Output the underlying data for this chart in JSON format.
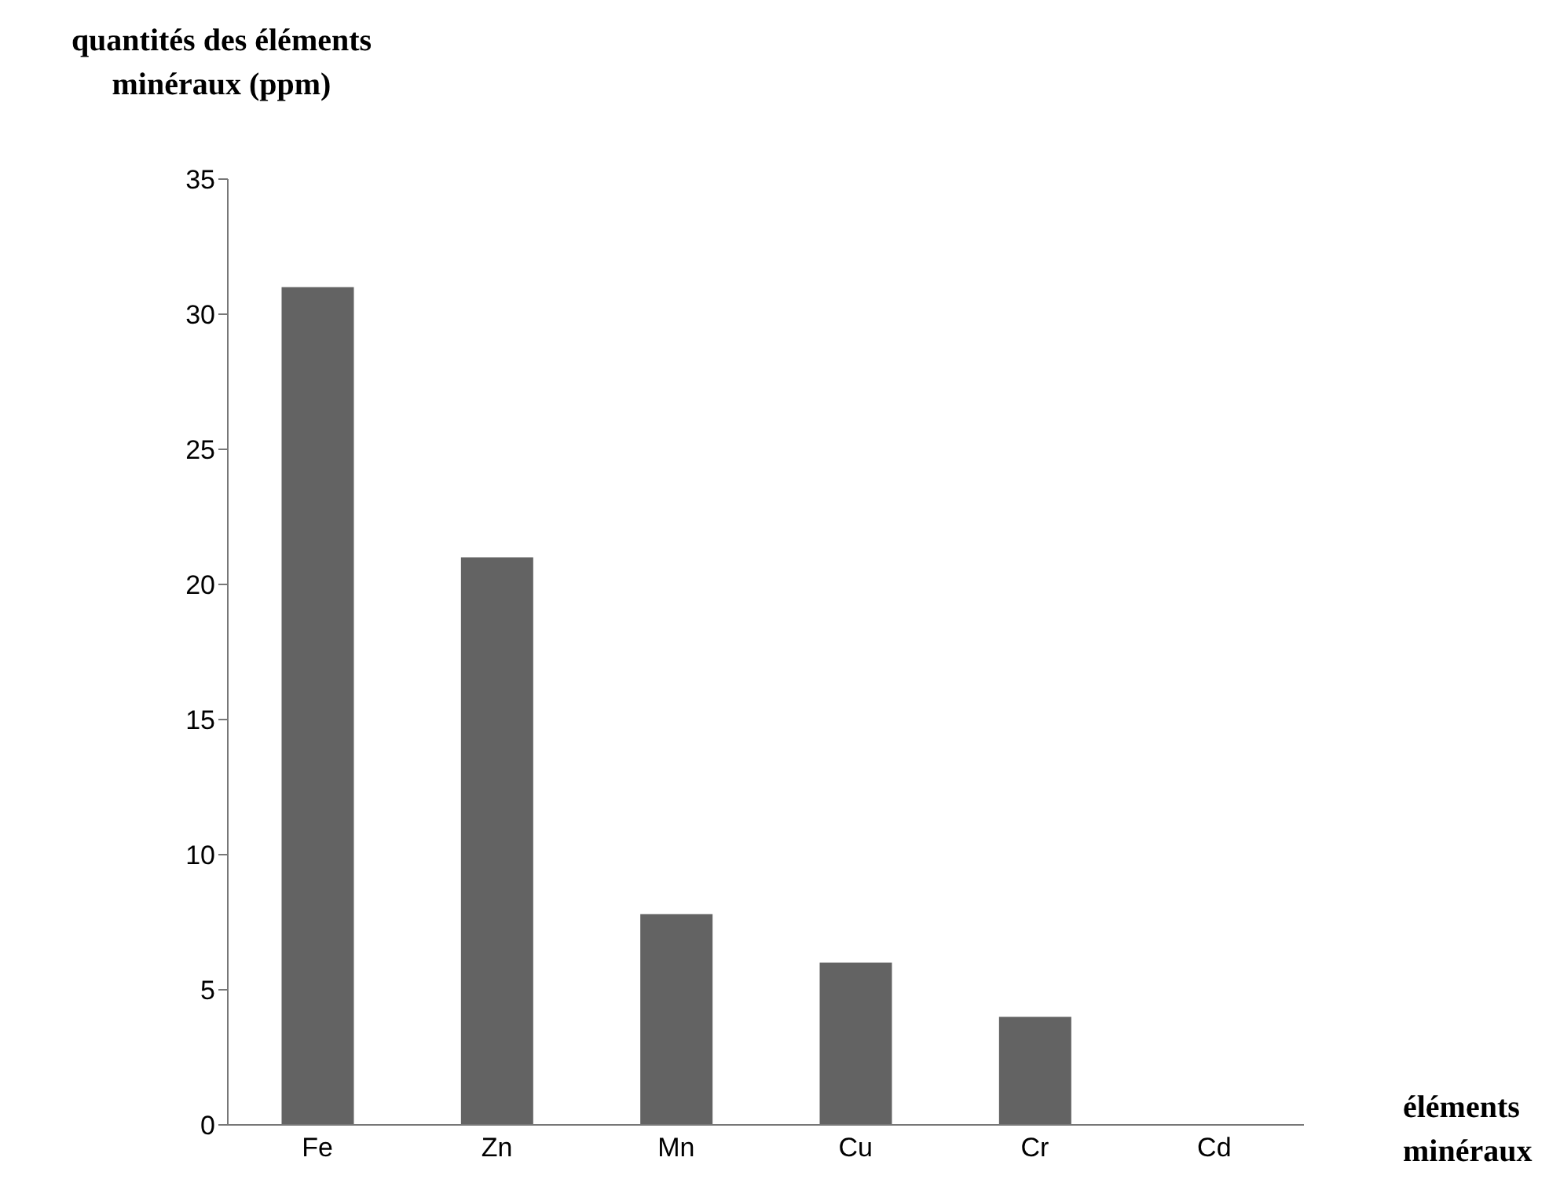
{
  "chart_data": {
    "type": "bar",
    "xlabel": "éléments minéraux",
    "ylabel": "quantités des éléments minéraux (ppm)",
    "categories": [
      "Fe",
      "Zn",
      "Mn",
      "Cu",
      "Cr",
      "Cd"
    ],
    "values": [
      31,
      21,
      7.8,
      6,
      4,
      0
    ],
    "color": "#636363",
    "ylim": [
      0,
      35
    ],
    "yticks": [
      0,
      5,
      10,
      15,
      20,
      25,
      30,
      35
    ],
    "grid": false
  }
}
